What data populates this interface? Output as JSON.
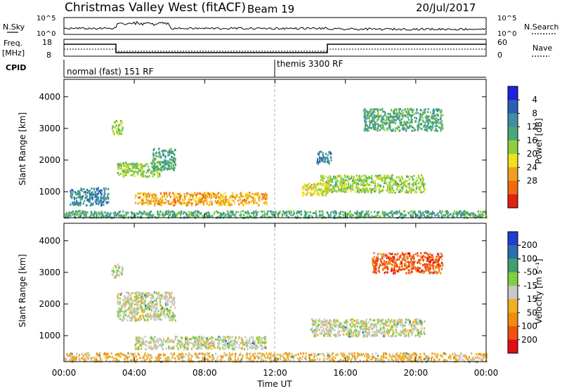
{
  "header": {
    "station": "Christmas Valley West (fitACF)",
    "beam": "Beam 19",
    "date": "20/Jul/2017"
  },
  "top_panels": {
    "nsky_label": "N.Sky",
    "nsky_ticks": [
      "10^5",
      "10^0"
    ],
    "nsearch_label": "N.Search",
    "nsearch_ticks": [
      "10^5",
      "10^0"
    ],
    "freq_label_line1": "Freq.",
    "freq_label_line2": "[MHz]",
    "freq_ticks": [
      "18",
      "8"
    ],
    "nave_label": "Nave",
    "nave_ticks": [
      "60",
      "0"
    ],
    "cpid_label": "CPID",
    "cpid_segments": [
      {
        "name": "normal (fast) 151 RF",
        "start_h": 0,
        "end_h": 12
      },
      {
        "name": "themis 3300 RF",
        "start_h": 12,
        "end_h": 24
      }
    ]
  },
  "chart_data": [
    {
      "type": "heatmap",
      "title": "",
      "ylabel": "Slant Range [km]",
      "xlabel": "",
      "ylim": [
        180,
        4550
      ],
      "xlim": [
        0,
        24
      ],
      "yticks": [
        "1000",
        "2000",
        "3000",
        "4000"
      ],
      "colorbar": {
        "label": "Power [dB]",
        "ticks": [
          "4",
          "8",
          "12",
          "16",
          "20",
          "24",
          "28"
        ],
        "colors": [
          "#1f1fe0",
          "#2a5fb8",
          "#3f8fa0",
          "#4aa878",
          "#8fcf3a",
          "#f0e020",
          "#f0a020",
          "#f06a10",
          "#e02010"
        ]
      },
      "scatter_regions": [
        {
          "t0": 2.7,
          "t1": 3.3,
          "r0": 2850,
          "r1": 3300,
          "value": 14
        },
        {
          "t0": 3.0,
          "t1": 5.5,
          "r0": 1500,
          "r1": 1950,
          "value": 16
        },
        {
          "t0": 5.0,
          "t1": 6.3,
          "r0": 1700,
          "r1": 2400,
          "value": 12
        },
        {
          "t0": 4.0,
          "t1": 11.5,
          "r0": 600,
          "r1": 1000,
          "value": 22
        },
        {
          "t0": 0.3,
          "t1": 2.5,
          "r0": 600,
          "r1": 1150,
          "value": 6
        },
        {
          "t0": 0.0,
          "t1": 24.0,
          "r0": 200,
          "r1": 420,
          "value": 12
        },
        {
          "t0": 14.5,
          "t1": 20.5,
          "r0": 1000,
          "r1": 1550,
          "value": 14
        },
        {
          "t0": 13.5,
          "t1": 15.0,
          "r0": 900,
          "r1": 1300,
          "value": 18
        },
        {
          "t0": 17.0,
          "t1": 21.5,
          "r0": 2950,
          "r1": 3650,
          "value": 10
        },
        {
          "t0": 14.3,
          "t1": 15.2,
          "r0": 1900,
          "r1": 2300,
          "value": 6
        }
      ]
    },
    {
      "type": "heatmap",
      "title": "",
      "ylabel": "Slant Range [km]",
      "xlabel": "Time UT",
      "ylim": [
        180,
        4550
      ],
      "xlim": [
        0,
        24
      ],
      "yticks": [
        "1000",
        "2000",
        "3000",
        "4000"
      ],
      "xticks": [
        "00:00",
        "04:00",
        "08:00",
        "12:00",
        "16:00",
        "20:00",
        "00:00"
      ],
      "colorbar": {
        "label": "Velocity [m s⁻¹]",
        "ticks": [
          "200",
          "100",
          "50",
          "15",
          "-15",
          "-50",
          "-100",
          "-200"
        ],
        "colors": [
          "#1f3fd0",
          "#2a6fb0",
          "#3f9f70",
          "#7fd040",
          "#c8c8c8",
          "#f0b020",
          "#f08a10",
          "#f05010",
          "#e01010"
        ]
      },
      "scatter_regions": [
        {
          "t0": 2.7,
          "t1": 3.3,
          "r0": 2850,
          "r1": 3300,
          "value": "-15"
        },
        {
          "t0": 3.0,
          "t1": 6.3,
          "r0": 1500,
          "r1": 2400,
          "value": "-15"
        },
        {
          "t0": 4.0,
          "t1": 11.5,
          "r0": 600,
          "r1": 1000,
          "value": "-15"
        },
        {
          "t0": 0.0,
          "t1": 24.0,
          "r0": 200,
          "r1": 480,
          "value": "-50"
        },
        {
          "t0": 14.0,
          "t1": 20.5,
          "r0": 1000,
          "r1": 1550,
          "value": "-15"
        },
        {
          "t0": 17.5,
          "t1": 21.5,
          "r0": 3000,
          "r1": 3650,
          "value": "-200"
        }
      ]
    }
  ]
}
